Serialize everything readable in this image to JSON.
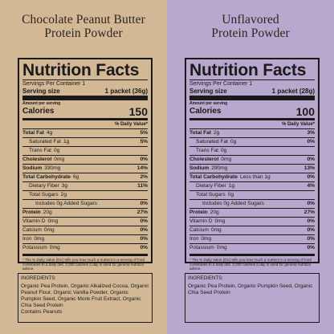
{
  "left": {
    "title_line1": "Chocolate Peanut Butter",
    "title_line2": "Protein Powder",
    "nf_title": "Nutrition Facts",
    "servings": "Servings Per Container 1",
    "serving_size_label": "Serving size",
    "serving_size_value": "1 packet (36g)",
    "amount_per_serving": "Amount per serving",
    "calories_label": "Calories",
    "calories_value": "150",
    "dv_header": "% Daily Value*",
    "rows": [
      {
        "label": "Total Fat",
        "amount": "4g",
        "pct": "5%"
      },
      {
        "label": "Saturated Fat",
        "amount": "1g",
        "pct": "5%"
      },
      {
        "label": "Trans Fat",
        "amount": "0g",
        "pct": ""
      },
      {
        "label": "Cholesterol",
        "amount": "0mg",
        "pct": "0%"
      },
      {
        "label": "Sodium",
        "amount": "330mg",
        "pct": "14%"
      },
      {
        "label": "Total Carbohydrate",
        "amount": "6g",
        "pct": "2%"
      },
      {
        "label": "Dietary Fiber",
        "amount": "3g",
        "pct": "11%"
      },
      {
        "label": "Total Sugars",
        "amount": "2g",
        "pct": ""
      },
      {
        "label": "Includes 0g Added Sugars",
        "amount": "",
        "pct": "0%"
      },
      {
        "label": "Protein",
        "amount": "20g",
        "pct": "27%"
      },
      {
        "label": "Vitamin D",
        "amount": "0mg",
        "pct": "0%"
      },
      {
        "label": "Calcium",
        "amount": "0mg",
        "pct": "0%"
      },
      {
        "label": "Iron",
        "amount": "0mg",
        "pct": "0%"
      },
      {
        "label": "Potassium",
        "amount": "0mg",
        "pct": "0%"
      }
    ],
    "footnote": "* The % Daily Value (DV) tells you how much a nutrient in a serving of food contributes to a daily diet. 2,000 calories a day is used for general nutrition advice.",
    "ingredients_head": "INGREDIENTS:",
    "ingredients": "Organic Pea Protein, Organic Alkalized Cocoa, Organic Peanut Flour, Organic Vanilla Powder, Organic Pumpkin Seed, Organic Monk Fruit Extract, Organic Chia Seed Protein",
    "contains": "Contains Peanuts"
  },
  "right": {
    "title_line1": "Unflavored",
    "title_line2": "Protein Powder",
    "nf_title": "Nutrition Facts",
    "servings": "Servings Per Container 1",
    "serving_size_label": "Serving size",
    "serving_size_value": "1 packet (28g)",
    "amount_per_serving": "Amount per serving",
    "calories_label": "Calories",
    "calories_value": "100",
    "dv_header": "% Daily Value*",
    "rows": [
      {
        "label": "Total Fat",
        "amount": "2g",
        "pct": "3%"
      },
      {
        "label": "Saturated Fat",
        "amount": "0g",
        "pct": "0%"
      },
      {
        "label": "Trans Fat",
        "amount": "0g",
        "pct": ""
      },
      {
        "label": "Cholesterol",
        "amount": "0mg",
        "pct": "0%"
      },
      {
        "label": "Sodium",
        "amount": "290mg",
        "pct": "13%"
      },
      {
        "label": "Total Carbohydrate",
        "amount": "Less than 1g",
        "pct": "0%"
      },
      {
        "label": "Dietary Fiber",
        "amount": "1g",
        "pct": "4%"
      },
      {
        "label": "Total Sugars",
        "amount": "0g",
        "pct": ""
      },
      {
        "label": "Includes 0g Added Sugars",
        "amount": "",
        "pct": "0%"
      },
      {
        "label": "Protein",
        "amount": "20g",
        "pct": "27%"
      },
      {
        "label": "Vitamin D",
        "amount": "0mg",
        "pct": "0%"
      },
      {
        "label": "Calcium",
        "amount": "0mg",
        "pct": "0%"
      },
      {
        "label": "Iron",
        "amount": "0mg",
        "pct": "0%"
      },
      {
        "label": "Potassium",
        "amount": "0mg",
        "pct": "0%"
      }
    ],
    "footnote": "* The % Daily Value (DV) tells you how much a nutrient in a serving of food contributes to a daily diet. 2,000 calories a day is used for general nutrition advice.",
    "ingredients_head": "INGREDIENTS:",
    "ingredients": "Organic Pea Protein, Organic Pumpkin Seed, Organic Chia Seed Protein",
    "contains": ""
  },
  "colors": {
    "left_bg": "#d3b896",
    "right_bg": "#b9a8cd"
  }
}
